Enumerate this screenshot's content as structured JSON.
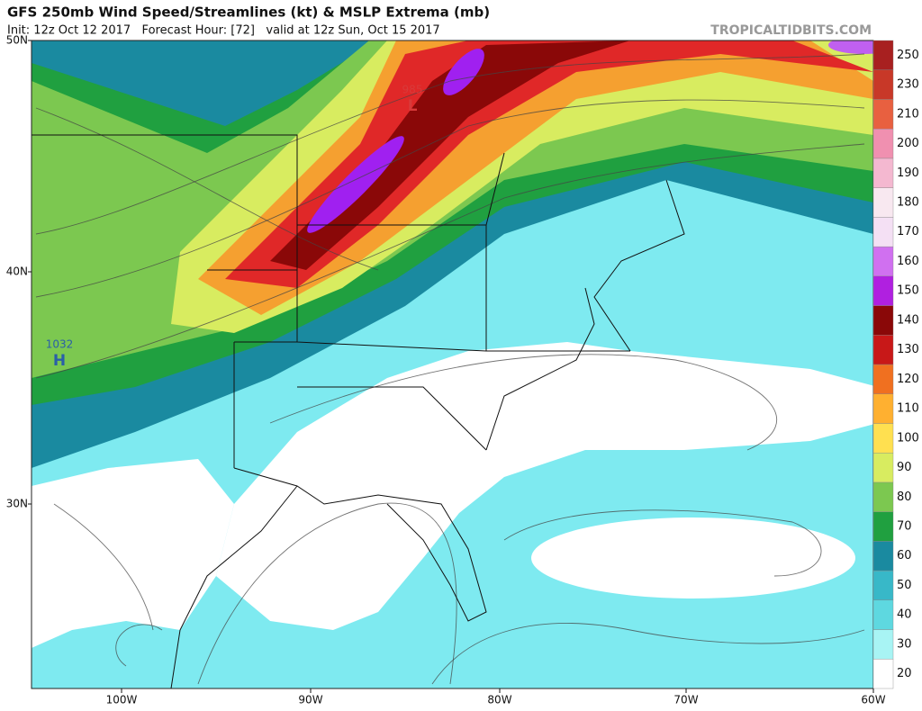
{
  "header": {
    "title": "GFS 250mb Wind Speed/Streamlines (kt) & MSLP Extrema (mb)",
    "subtitle": "Init: 12z Oct 12 2017   Forecast Hour: [72]   valid at 12z Sun, Oct 15 2017",
    "watermark": "TROPICALTIDBITS.COM"
  },
  "map": {
    "lat_labels": [
      "50N",
      "40N",
      "30N"
    ],
    "lon_labels": [
      "100W",
      "90W",
      "80W",
      "70W",
      "60W"
    ],
    "extrema": [
      {
        "pressure": "985",
        "symbol": "L",
        "color": "#d83a3a"
      },
      {
        "pressure": "1032",
        "symbol": "H",
        "color": "#2a5fa8"
      }
    ]
  },
  "colorbar": {
    "ticks": [
      20,
      30,
      40,
      50,
      60,
      70,
      80,
      90,
      100,
      110,
      120,
      130,
      140,
      150,
      160,
      170,
      180,
      190,
      200,
      210,
      230,
      250
    ],
    "colors": [
      "#ffffff",
      "#a8f4f4",
      "#5ed8e0",
      "#38b8c8",
      "#1a8aa0",
      "#20a040",
      "#7cc850",
      "#d8ec60",
      "#ffe050",
      "#ffb030",
      "#f07020",
      "#c81818",
      "#8a0808",
      "#b020e0",
      "#d070f0",
      "#f4e0f4",
      "#f8e8f0",
      "#f4b8d0",
      "#f090b0",
      "#e86040",
      "#c83828",
      "#a82020"
    ]
  }
}
